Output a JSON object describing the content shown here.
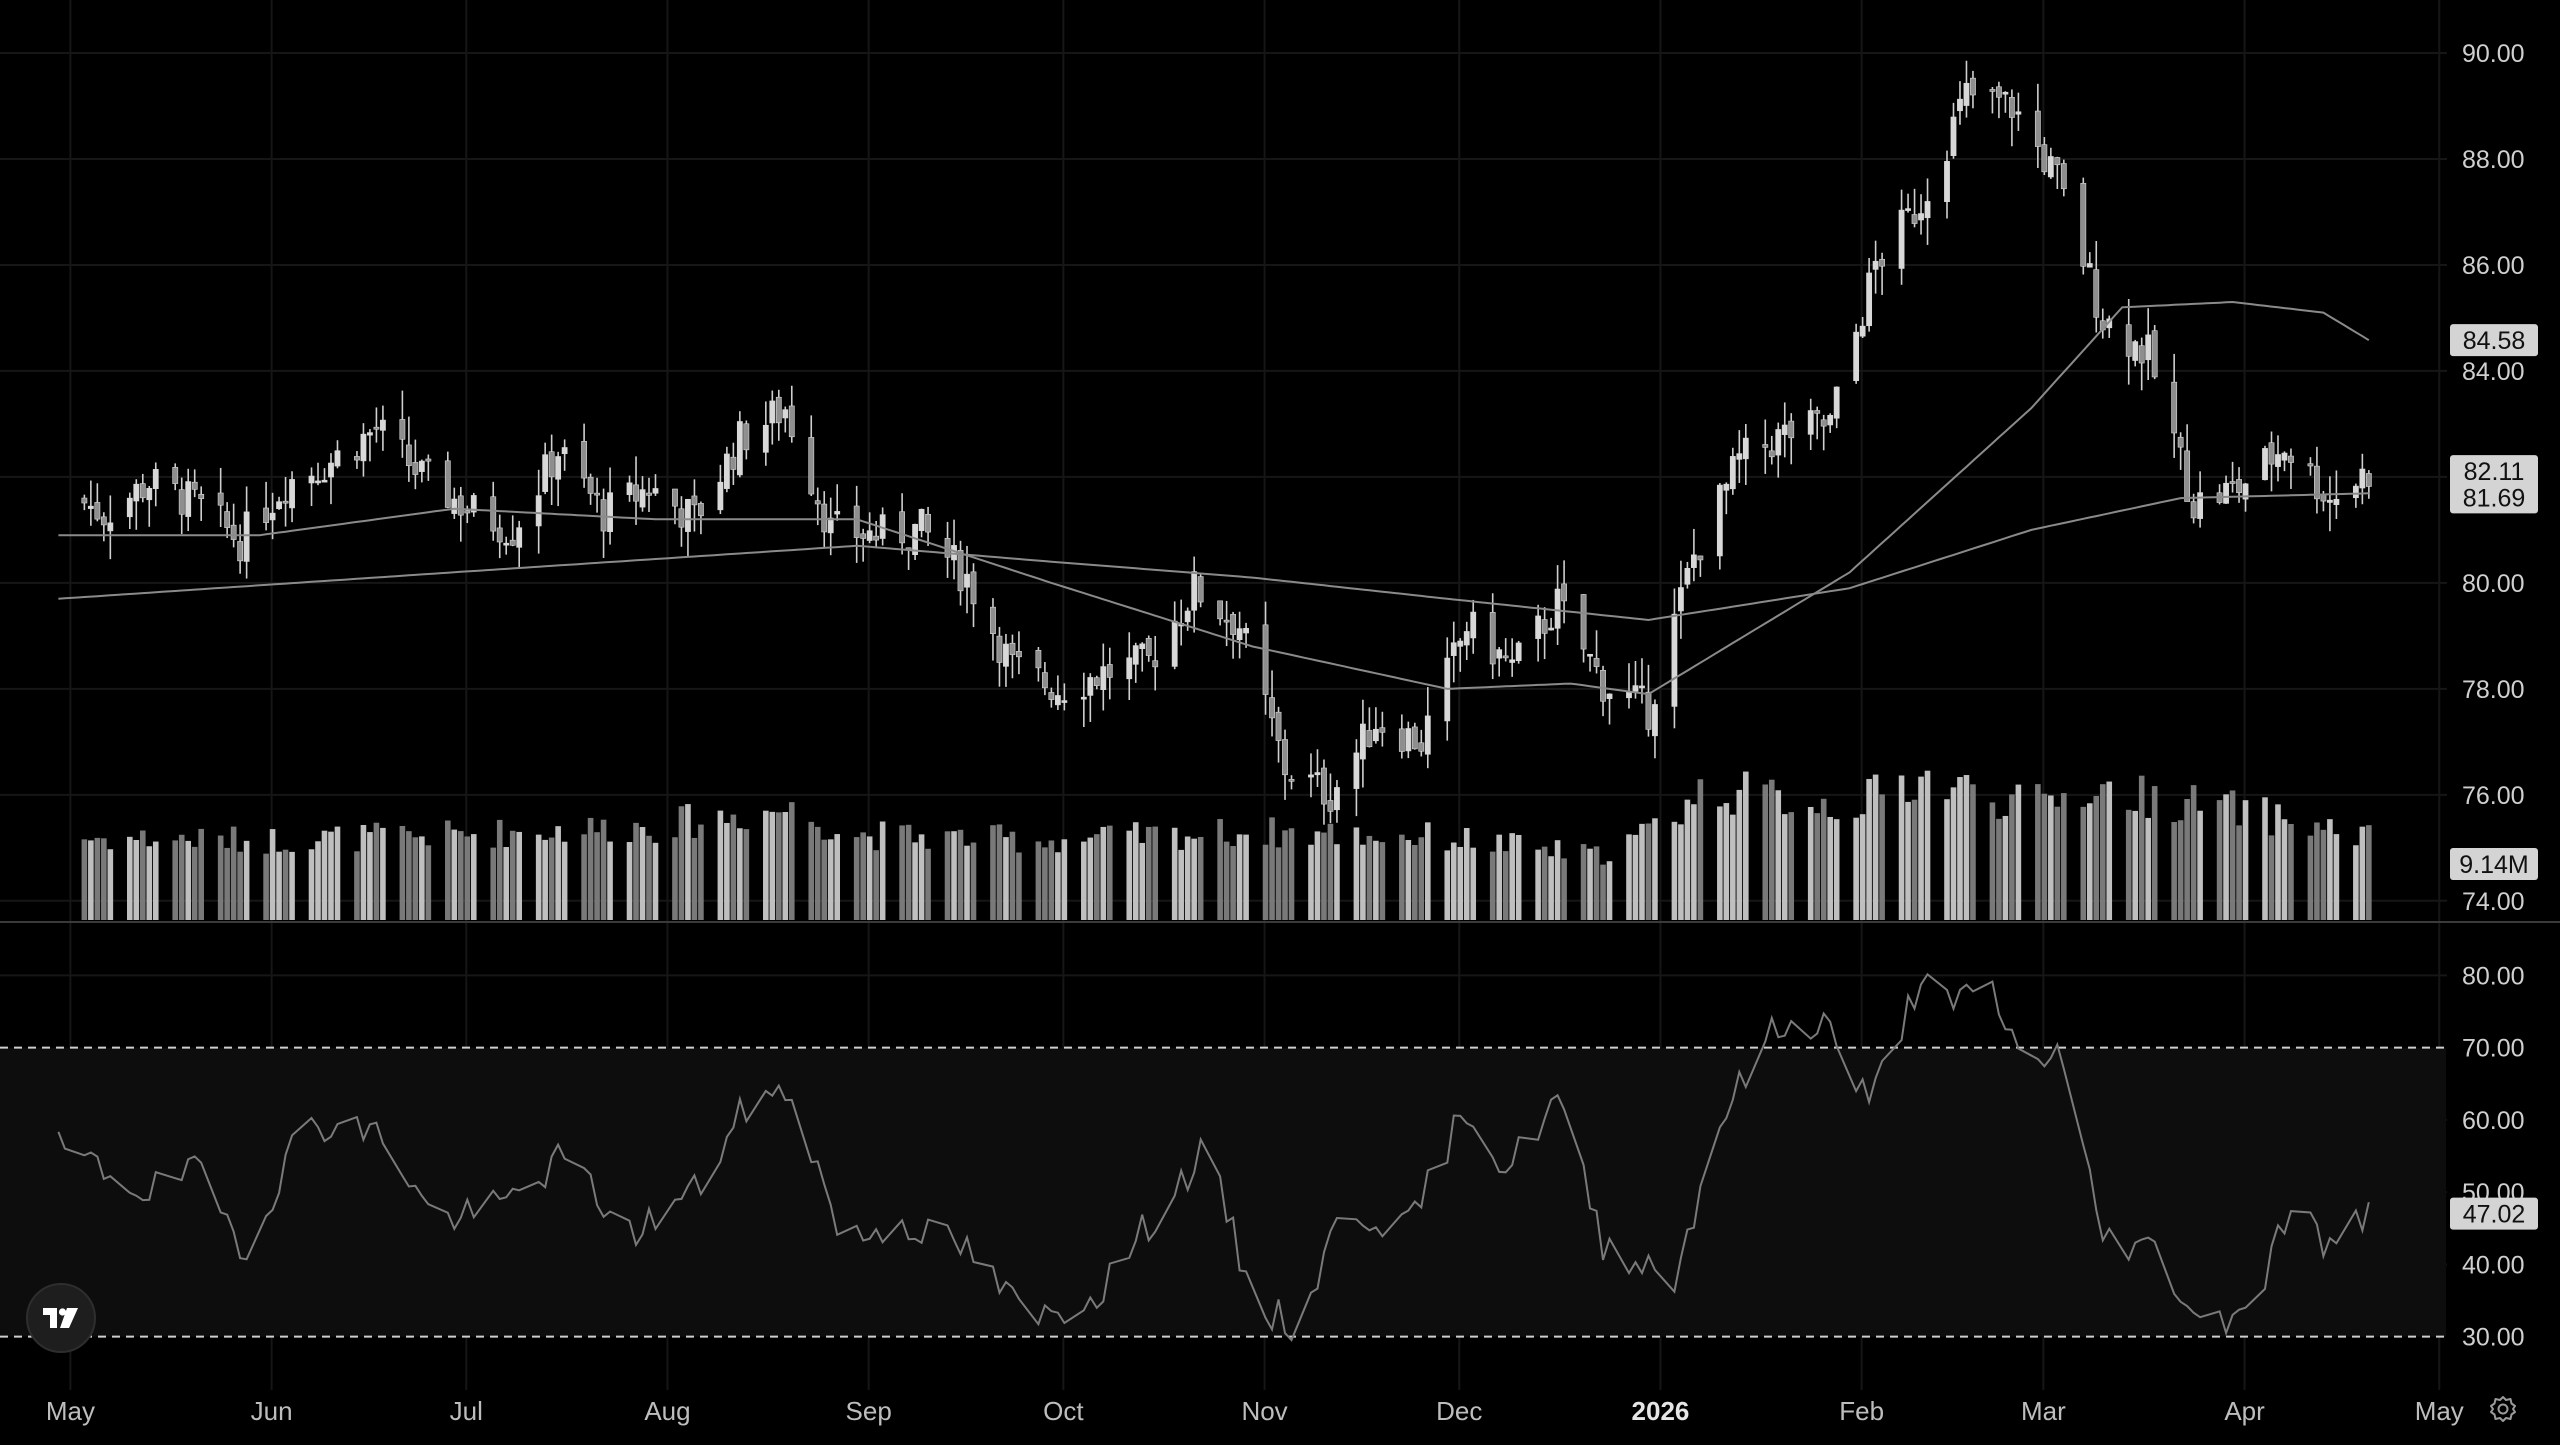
{
  "chart_data": [
    {
      "type": "candlestick",
      "panel": "price",
      "title": "",
      "x_axis_labels": [
        "May",
        "Jun",
        "Jul",
        "Aug",
        "Sep",
        "Oct",
        "Nov",
        "Dec",
        "2026",
        "Feb",
        "Mar",
        "Apr",
        "May"
      ],
      "x_axis_bold": "2026",
      "y_axis_ticks": [
        "90.00",
        "88.00",
        "86.00",
        "84.00",
        "82.00",
        "80.00",
        "78.00",
        "76.00",
        "74.00"
      ],
      "ylim": [
        73.6,
        91.0
      ],
      "grid": true,
      "price_path": [
        [
          "2025-05-01",
          81.8
        ],
        [
          "2025-05-08",
          81.3
        ],
        [
          "2025-05-15",
          81.9
        ],
        [
          "2025-05-22",
          81.5
        ],
        [
          "2025-05-29",
          80.8
        ],
        [
          "2025-06-05",
          81.9
        ],
        [
          "2025-06-12",
          82.3
        ],
        [
          "2025-06-19",
          82.9
        ],
        [
          "2025-06-26",
          82.0
        ],
        [
          "2025-07-03",
          81.4
        ],
        [
          "2025-07-10",
          81.0
        ],
        [
          "2025-07-17",
          82.5
        ],
        [
          "2025-07-24",
          81.3
        ],
        [
          "2025-07-31",
          81.8
        ],
        [
          "2025-08-07",
          81.2
        ],
        [
          "2025-08-14",
          82.7
        ],
        [
          "2025-08-21",
          83.3
        ],
        [
          "2025-08-28",
          81.0
        ],
        [
          "2025-09-04",
          80.9
        ],
        [
          "2025-09-11",
          81.0
        ],
        [
          "2025-09-18",
          80.1
        ],
        [
          "2025-09-25",
          78.4
        ],
        [
          "2025-10-02",
          78.0
        ],
        [
          "2025-10-09",
          78.3
        ],
        [
          "2025-10-16",
          78.5
        ],
        [
          "2025-10-23",
          79.9
        ],
        [
          "2025-10-30",
          79.2
        ],
        [
          "2025-11-06",
          76.5
        ],
        [
          "2025-11-13",
          76.0
        ],
        [
          "2025-11-20",
          77.4
        ],
        [
          "2025-11-27",
          77.0
        ],
        [
          "2025-12-04",
          79.2
        ],
        [
          "2025-12-11",
          78.4
        ],
        [
          "2025-12-18",
          79.6
        ],
        [
          "2025-12-25",
          78.1
        ],
        [
          "2026-01-01",
          77.6
        ],
        [
          "2026-01-08",
          80.5
        ],
        [
          "2026-01-15",
          82.3
        ],
        [
          "2026-01-22",
          82.8
        ],
        [
          "2026-01-29",
          83.0
        ],
        [
          "2026-02-05",
          86.0
        ],
        [
          "2026-02-12",
          87.2
        ],
        [
          "2026-02-19",
          89.2
        ],
        [
          "2026-02-26",
          89.0
        ],
        [
          "2026-03-05",
          87.6
        ],
        [
          "2026-03-12",
          85.0
        ],
        [
          "2026-03-19",
          84.3
        ],
        [
          "2026-03-26",
          81.5
        ],
        [
          "2026-04-02",
          81.8
        ],
        [
          "2026-04-09",
          82.6
        ],
        [
          "2026-04-16",
          81.6
        ],
        [
          "2026-04-22",
          82.1
        ]
      ],
      "last_date": "2026-04-22",
      "last_price": "82.11",
      "moving_averages": [
        {
          "label": "84.58",
          "color": "#8a8a8a",
          "path": [
            [
              "2025-05-01",
              80.9
            ],
            [
              "2025-06-01",
              80.9
            ],
            [
              "2025-07-01",
              81.4
            ],
            [
              "2025-08-01",
              81.2
            ],
            [
              "2025-09-01",
              81.2
            ],
            [
              "2025-10-01",
              80.0
            ],
            [
              "2025-11-01",
              78.8
            ],
            [
              "2025-12-01",
              78.0
            ],
            [
              "2025-12-20",
              78.1
            ],
            [
              "2026-01-01",
              77.9
            ],
            [
              "2026-02-01",
              80.2
            ],
            [
              "2026-03-01",
              83.3
            ],
            [
              "2026-03-15",
              85.2
            ],
            [
              "2026-04-01",
              85.3
            ],
            [
              "2026-04-15",
              85.1
            ],
            [
              "2026-04-22",
              84.58
            ]
          ]
        },
        {
          "label": "81.69",
          "color": "#8a8a8a",
          "path": [
            [
              "2025-05-01",
              79.7
            ],
            [
              "2025-07-01",
              80.2
            ],
            [
              "2025-09-01",
              80.7
            ],
            [
              "2025-10-01",
              80.4
            ],
            [
              "2025-11-01",
              80.1
            ],
            [
              "2025-12-01",
              79.7
            ],
            [
              "2026-01-01",
              79.3
            ],
            [
              "2026-02-01",
              79.9
            ],
            [
              "2026-03-01",
              81.0
            ],
            [
              "2026-03-24",
              81.6
            ],
            [
              "2026-04-22",
              81.69
            ]
          ]
        }
      ]
    },
    {
      "type": "bar",
      "panel": "volume",
      "last_label": "9.14M",
      "volume_path": [
        [
          "2025-05-01",
          0.58
        ],
        [
          "2025-06-01",
          0.56
        ],
        [
          "2025-07-01",
          0.6
        ],
        [
          "2025-08-01",
          0.66
        ],
        [
          "2025-08-21",
          0.78
        ],
        [
          "2025-09-01",
          0.6
        ],
        [
          "2025-10-01",
          0.56
        ],
        [
          "2025-11-01",
          0.62
        ],
        [
          "2025-12-01",
          0.58
        ],
        [
          "2025-12-24",
          0.45
        ],
        [
          "2026-01-01",
          0.62
        ],
        [
          "2026-01-10",
          0.92
        ],
        [
          "2026-02-01",
          0.8
        ],
        [
          "2026-02-12",
          1.0
        ],
        [
          "2026-03-01",
          0.8
        ],
        [
          "2026-03-10",
          0.92
        ],
        [
          "2026-04-01",
          0.78
        ],
        [
          "2026-04-22",
          0.58
        ]
      ]
    },
    {
      "type": "line",
      "panel": "rsi",
      "y_axis_ticks": [
        "80.00",
        "70.00",
        "60.00",
        "50.00",
        "40.00",
        "30.00"
      ],
      "ylim": [
        24,
        86
      ],
      "bands": [
        70,
        30
      ],
      "last_value": "47.02",
      "rsi_path": [
        [
          "2025-05-01",
          56
        ],
        [
          "2025-05-15",
          50
        ],
        [
          "2025-05-22",
          53
        ],
        [
          "2025-05-30",
          42
        ],
        [
          "2025-06-08",
          60
        ],
        [
          "2025-06-20",
          58
        ],
        [
          "2025-06-28",
          46
        ],
        [
          "2025-07-08",
          48
        ],
        [
          "2025-07-18",
          55
        ],
        [
          "2025-07-28",
          44
        ],
        [
          "2025-08-08",
          51
        ],
        [
          "2025-08-15",
          62
        ],
        [
          "2025-08-22",
          64
        ],
        [
          "2025-08-30",
          43
        ],
        [
          "2025-09-08",
          46
        ],
        [
          "2025-09-18",
          42
        ],
        [
          "2025-09-28",
          32
        ],
        [
          "2025-10-08",
          36
        ],
        [
          "2025-10-18",
          48
        ],
        [
          "2025-10-25",
          56
        ],
        [
          "2025-11-01",
          35
        ],
        [
          "2025-11-08",
          31
        ],
        [
          "2025-11-15",
          48
        ],
        [
          "2025-11-25",
          45
        ],
        [
          "2025-12-04",
          62
        ],
        [
          "2025-12-10",
          53
        ],
        [
          "2025-12-18",
          63
        ],
        [
          "2025-12-25",
          43
        ],
        [
          "2026-01-01",
          40
        ],
        [
          "2026-01-05",
          38
        ],
        [
          "2026-01-12",
          60
        ],
        [
          "2026-01-20",
          72
        ],
        [
          "2026-01-28",
          74
        ],
        [
          "2026-02-04",
          62
        ],
        [
          "2026-02-12",
          80
        ],
        [
          "2026-02-17",
          75
        ],
        [
          "2026-02-22",
          80
        ],
        [
          "2026-02-28",
          67
        ],
        [
          "2026-03-05",
          70
        ],
        [
          "2026-03-12",
          44
        ],
        [
          "2026-03-20",
          42
        ],
        [
          "2026-03-28",
          31
        ],
        [
          "2026-04-05",
          36
        ],
        [
          "2026-04-10",
          49
        ],
        [
          "2026-04-16",
          42
        ],
        [
          "2026-04-22",
          47.02
        ]
      ]
    }
  ]
}
